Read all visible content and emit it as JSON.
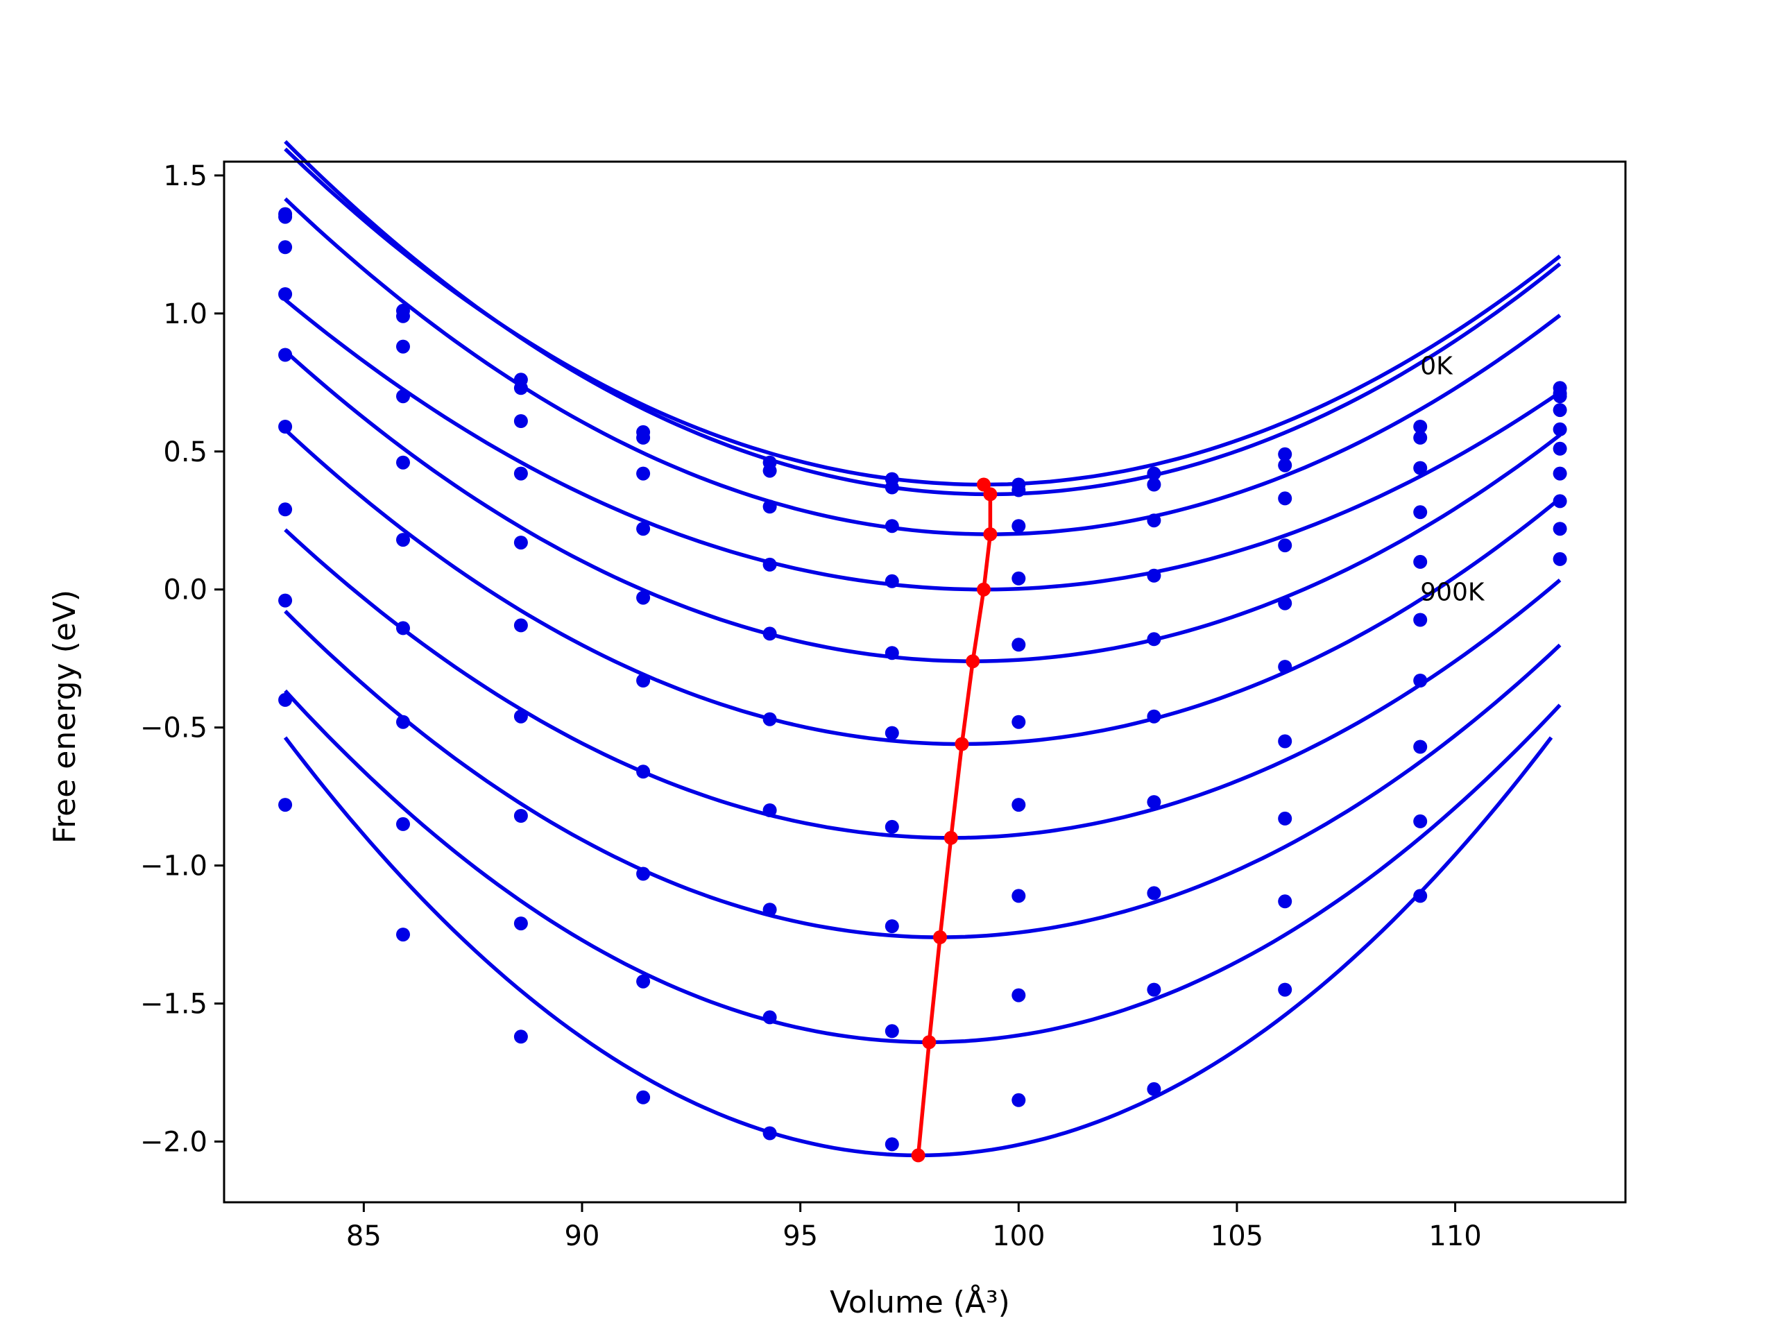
{
  "chart_data": {
    "type": "line",
    "xlabel": "Volume (Å³)",
    "ylabel": "Free energy (eV)",
    "xlim": [
      81.8,
      113.9
    ],
    "ylim": [
      -2.22,
      1.55
    ],
    "xticks": [
      "85",
      "90",
      "95",
      "100",
      "105",
      "110"
    ],
    "yticks": [
      "1.5",
      "1.0",
      "0.5",
      "0.0",
      "−0.5",
      "−1.0",
      "−1.5",
      "−2.0"
    ],
    "grid": false,
    "annotations": [
      {
        "text": "0K",
        "x": 109.2,
        "y": 0.78
      },
      {
        "text": "900K",
        "x": 109.2,
        "y": -0.04
      }
    ],
    "colors": {
      "curves": "#0000e6",
      "points": "#0000e6",
      "minimum_path": "#ff0000"
    },
    "x": [
      83.2,
      85.9,
      88.6,
      91.4,
      94.3,
      97.1,
      100.0,
      103.1,
      106.1,
      109.2,
      112.4
    ],
    "series": [
      {
        "values": [
          1.36,
          1.01,
          0.76,
          0.57,
          0.46,
          0.4,
          0.38,
          0.42,
          0.49,
          0.59,
          0.73
        ],
        "fit": {
          "x0": 99.2,
          "y0": 0.38,
          "k": 0.00475,
          "xstart": 83.2,
          "xend": 112.4
        }
      },
      {
        "values": [
          1.35,
          0.99,
          0.73,
          0.55,
          0.43,
          0.37,
          0.36,
          0.38,
          0.45,
          0.55,
          0.71
        ],
        "fit": {
          "x0": 99.35,
          "y0": 0.345,
          "k": 0.0049,
          "xstart": 83.2,
          "xend": 112.4
        }
      },
      {
        "values": [
          1.24,
          0.88,
          0.61,
          0.42,
          0.3,
          0.23,
          0.23,
          0.25,
          0.33,
          0.44,
          0.7
        ],
        "fit": {
          "x0": 99.35,
          "y0": 0.2,
          "k": 0.00466,
          "xstart": 83.2,
          "xend": 112.4
        }
      },
      {
        "values": [
          1.07,
          0.7,
          0.42,
          0.22,
          0.09,
          0.03,
          0.04,
          0.05,
          0.16,
          0.28,
          0.65
        ],
        "fit": {
          "x0": 99.2,
          "y0": 0.0,
          "k": 0.0041,
          "xstart": 83.2,
          "xend": 112.4
        }
      },
      {
        "values": [
          0.85,
          0.46,
          0.17,
          -0.03,
          -0.16,
          -0.23,
          -0.2,
          -0.18,
          -0.05,
          0.1,
          0.58
        ],
        "fit": {
          "x0": 98.95,
          "y0": -0.26,
          "k": 0.00453,
          "xstart": 83.2,
          "xend": 112.4
        }
      },
      {
        "values": [
          0.59,
          0.18,
          -0.13,
          -0.33,
          -0.47,
          -0.52,
          -0.48,
          -0.46,
          -0.28,
          -0.11,
          0.51
        ],
        "fit": {
          "x0": 98.7,
          "y0": -0.56,
          "k": 0.00474,
          "xstart": 83.2,
          "xend": 112.4
        }
      },
      {
        "values": [
          0.29,
          -0.14,
          -0.46,
          -0.66,
          -0.8,
          -0.86,
          -0.78,
          -0.77,
          -0.55,
          -0.33,
          0.42
        ],
        "fit": {
          "x0": 98.45,
          "y0": -0.9,
          "k": 0.0048,
          "xstart": 83.2,
          "xend": 112.4
        }
      },
      {
        "values": [
          -0.04,
          -0.48,
          -0.82,
          -1.03,
          -1.16,
          -1.22,
          -1.11,
          -1.1,
          -0.83,
          -0.57,
          0.32
        ],
        "fit": {
          "x0": 98.2,
          "y0": -1.26,
          "k": 0.00525,
          "xstart": 83.2,
          "xend": 112.4
        }
      },
      {
        "values": [
          -0.4,
          -0.85,
          -1.21,
          -1.42,
          -1.55,
          -1.6,
          -1.47,
          -1.45,
          -1.13,
          -0.84,
          0.22
        ],
        "fit": {
          "x0": 97.95,
          "y0": -1.64,
          "k": 0.00585,
          "xstart": 83.2,
          "xend": 112.4
        }
      },
      {
        "values": [
          -0.78,
          -1.25,
          -1.62,
          -1.84,
          -1.97,
          -2.01,
          -1.85,
          -1.81,
          -1.45,
          -1.11,
          0.11
        ],
        "fit": {
          "x0": 97.7,
          "y0": -2.05,
          "k": 0.0072,
          "xstart": 83.2,
          "xend": 112.2
        }
      }
    ],
    "minimum_path": {
      "x": [
        99.2,
        99.35,
        99.35,
        99.2,
        98.95,
        98.7,
        98.45,
        98.2,
        97.95,
        97.7
      ],
      "y": [
        0.38,
        0.345,
        0.2,
        0.0,
        -0.26,
        -0.56,
        -0.9,
        -1.26,
        -1.64,
        -2.05
      ]
    }
  }
}
